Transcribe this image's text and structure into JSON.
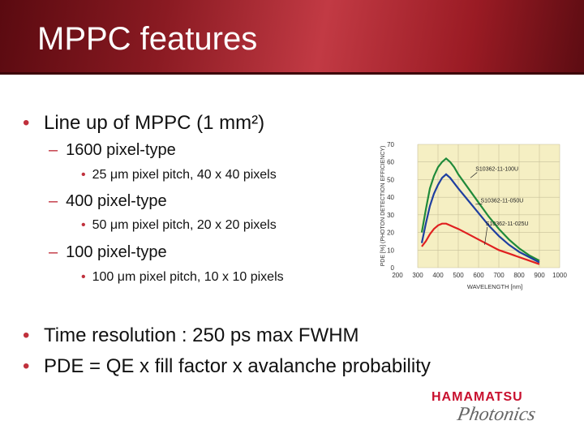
{
  "slide": {
    "title": "MPPC features",
    "bullets": [
      {
        "text": "Line up of MPPC (1 mm²)",
        "sub": [
          {
            "text": "1600 pixel-type",
            "sub": [
              "25 μm pixel pitch, 40 x 40 pixels"
            ]
          },
          {
            "text": "400 pixel-type",
            "sub": [
              "50 μm pixel pitch, 20 x 20 pixels"
            ]
          },
          {
            "text": "100 pixel-type",
            "sub": [
              "100 μm pixel pitch, 10 x 10 pixels"
            ]
          }
        ]
      },
      {
        "text": "Time resolution : 250 ps max FWHM"
      },
      {
        "text": "PDE =  QE x fill factor x avalanche probability"
      }
    ],
    "bullet_glyph": "•",
    "dash_glyph": "–"
  },
  "logo": {
    "line1": "HAMAMATSU",
    "line2": "Photonics",
    "color": "#c8102e"
  },
  "colors": {
    "accent": "#c0303c",
    "title_bar": "#8a1a22",
    "plot_bg": "#f5efc3"
  },
  "chart_data": {
    "type": "line",
    "xlabel": "WAVELENGTH [nm]",
    "ylabel": "PDE [%] (PHOTON DETECTION EFFICIENCY)",
    "xlim": [
      200,
      1000
    ],
    "ylim": [
      0,
      70
    ],
    "x_ticks": [
      200,
      300,
      400,
      500,
      600,
      700,
      800,
      900,
      1000
    ],
    "y_ticks": [
      0,
      10,
      20,
      30,
      40,
      50,
      60,
      70
    ],
    "grid": true,
    "series": [
      {
        "name": "S10362-11-100U",
        "color": "#1f8a3a",
        "x": [
          320,
          340,
          360,
          380,
          400,
          420,
          440,
          460,
          480,
          500,
          550,
          600,
          650,
          700,
          750,
          800,
          850,
          900
        ],
        "y": [
          20,
          33,
          45,
          52,
          57,
          60,
          62,
          60,
          57,
          53,
          45,
          37,
          29,
          22,
          16,
          11,
          7,
          4
        ]
      },
      {
        "name": "S10362-11-050U",
        "color": "#1f3fa0",
        "x": [
          320,
          340,
          360,
          380,
          400,
          420,
          440,
          460,
          480,
          500,
          550,
          600,
          650,
          700,
          750,
          800,
          850,
          900
        ],
        "y": [
          14,
          25,
          35,
          42,
          47,
          51,
          53,
          51,
          48,
          45,
          38,
          31,
          24,
          18,
          13,
          9,
          6,
          3
        ]
      },
      {
        "name": "S10362-11-025U",
        "color": "#e02020",
        "x": [
          320,
          340,
          360,
          380,
          400,
          420,
          440,
          460,
          480,
          500,
          550,
          600,
          650,
          700,
          750,
          800,
          850,
          900
        ],
        "y": [
          12,
          15,
          19,
          22,
          24,
          25,
          25,
          24,
          23,
          22,
          19,
          16,
          13,
          10,
          8,
          6,
          4,
          2
        ]
      }
    ]
  }
}
